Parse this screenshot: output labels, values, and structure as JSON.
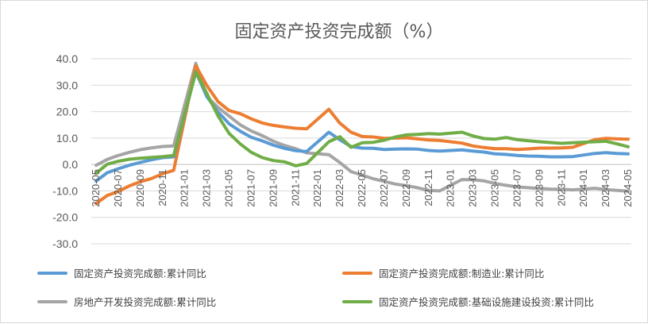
{
  "chart_data": {
    "type": "line",
    "title": "固定资产投资完成额（%）",
    "xlabel": "",
    "ylabel": "",
    "ylim": [
      -30,
      40
    ],
    "yticks": [
      "40.0",
      "30.0",
      "20.0",
      "10.0",
      "0.0",
      "-10.0",
      "-20.0",
      "-30.0"
    ],
    "x": [
      "2020-05",
      "2020-06",
      "2020-07",
      "2020-08",
      "2020-09",
      "2020-10",
      "2020-11",
      "2020-12",
      "2021-01",
      "2021-02",
      "2021-03",
      "2021-04",
      "2021-05",
      "2021-06",
      "2021-07",
      "2021-08",
      "2021-09",
      "2021-10",
      "2021-11",
      "2021-12",
      "2022-01",
      "2022-02",
      "2022-03",
      "2022-04",
      "2022-05",
      "2022-06",
      "2022-07",
      "2022-08",
      "2022-09",
      "2022-10",
      "2022-11",
      "2022-12",
      "2023-01",
      "2023-02",
      "2023-03",
      "2023-04",
      "2023-05",
      "2023-06",
      "2023-07",
      "2023-08",
      "2023-09",
      "2023-10",
      "2023-11",
      "2023-12",
      "2024-01",
      "2024-02",
      "2024-03",
      "2024-04",
      "2024-05"
    ],
    "x_tick_labels": [
      "2020-05",
      "2020-07",
      "2020-09",
      "2020-11",
      "2021-01",
      "2021-03",
      "2021-05",
      "2021-07",
      "2021-09",
      "2021-11",
      "2022-01",
      "2022-03",
      "2022-05",
      "2022-07",
      "2022-09",
      "2022-11",
      "2023-01",
      "2023-03",
      "2023-05",
      "2023-07",
      "2023-09",
      "2023-11",
      "2024-01",
      "2024-03",
      "2024-05"
    ],
    "grid": true,
    "legend_position": "bottom",
    "series": [
      {
        "name": "固定资产投资完成额:累计同比",
        "color": "#5b9bd5",
        "values": [
          -6.3,
          -3.1,
          -1.6,
          -0.3,
          0.8,
          1.8,
          2.6,
          2.9,
          null,
          35.0,
          25.6,
          19.9,
          15.4,
          12.6,
          10.3,
          8.9,
          7.3,
          6.1,
          5.2,
          4.9,
          null,
          12.2,
          9.3,
          6.8,
          6.2,
          6.1,
          5.7,
          5.8,
          5.9,
          5.8,
          5.3,
          5.1,
          null,
          5.5,
          5.1,
          4.7,
          4.0,
          3.8,
          3.4,
          3.2,
          3.1,
          2.9,
          2.9,
          3.0,
          null,
          4.2,
          4.5,
          4.2,
          4.0
        ]
      },
      {
        "name": "固定资产投资完成额:制造业:累计同比",
        "color": "#ed7d31",
        "values": [
          -14.8,
          -11.7,
          -10.2,
          -8.1,
          -6.5,
          -5.3,
          -3.5,
          -2.2,
          null,
          37.3,
          29.8,
          23.8,
          20.4,
          19.2,
          17.3,
          15.7,
          14.8,
          14.2,
          13.7,
          13.5,
          null,
          20.9,
          15.6,
          12.2,
          10.6,
          10.4,
          9.9,
          10.0,
          10.1,
          9.7,
          9.3,
          9.1,
          null,
          8.1,
          7.0,
          6.4,
          6.0,
          6.0,
          5.7,
          5.9,
          6.2,
          6.2,
          6.3,
          6.5,
          null,
          9.4,
          9.9,
          9.7,
          9.6
        ]
      },
      {
        "name": "房地产开发投资完成额:累计同比",
        "color": "#a5a5a5",
        "values": [
          -0.3,
          1.9,
          3.4,
          4.6,
          5.6,
          6.3,
          6.8,
          7.0,
          null,
          38.3,
          25.6,
          21.6,
          18.3,
          15.0,
          12.7,
          10.9,
          8.8,
          7.2,
          6.0,
          4.4,
          null,
          3.7,
          0.7,
          -2.7,
          -4.0,
          -5.4,
          -6.4,
          -7.4,
          -8.0,
          -8.8,
          -9.8,
          -10.0,
          null,
          -5.7,
          -5.8,
          -6.2,
          -7.2,
          -7.9,
          -8.5,
          -8.8,
          -9.1,
          -9.3,
          -9.4,
          -9.6,
          null,
          -9.0,
          -9.5,
          -9.8,
          -10.1
        ]
      },
      {
        "name": "固定资产投资完成额:基础设施建设投资:累计同比",
        "color": "#70ad47",
        "values": [
          -3.3,
          0.1,
          1.2,
          2.0,
          2.4,
          2.7,
          3.0,
          3.4,
          null,
          35.0,
          26.8,
          18.4,
          11.8,
          7.8,
          4.6,
          2.6,
          1.5,
          1.0,
          -0.5,
          0.4,
          null,
          8.6,
          10.5,
          6.5,
          8.2,
          8.4,
          9.2,
          10.4,
          11.2,
          11.4,
          11.7,
          11.5,
          null,
          12.2,
          10.8,
          9.8,
          9.6,
          10.2,
          9.4,
          9.0,
          8.6,
          8.3,
          8.0,
          8.2,
          null,
          8.6,
          8.8,
          7.8,
          6.7
        ]
      }
    ]
  }
}
